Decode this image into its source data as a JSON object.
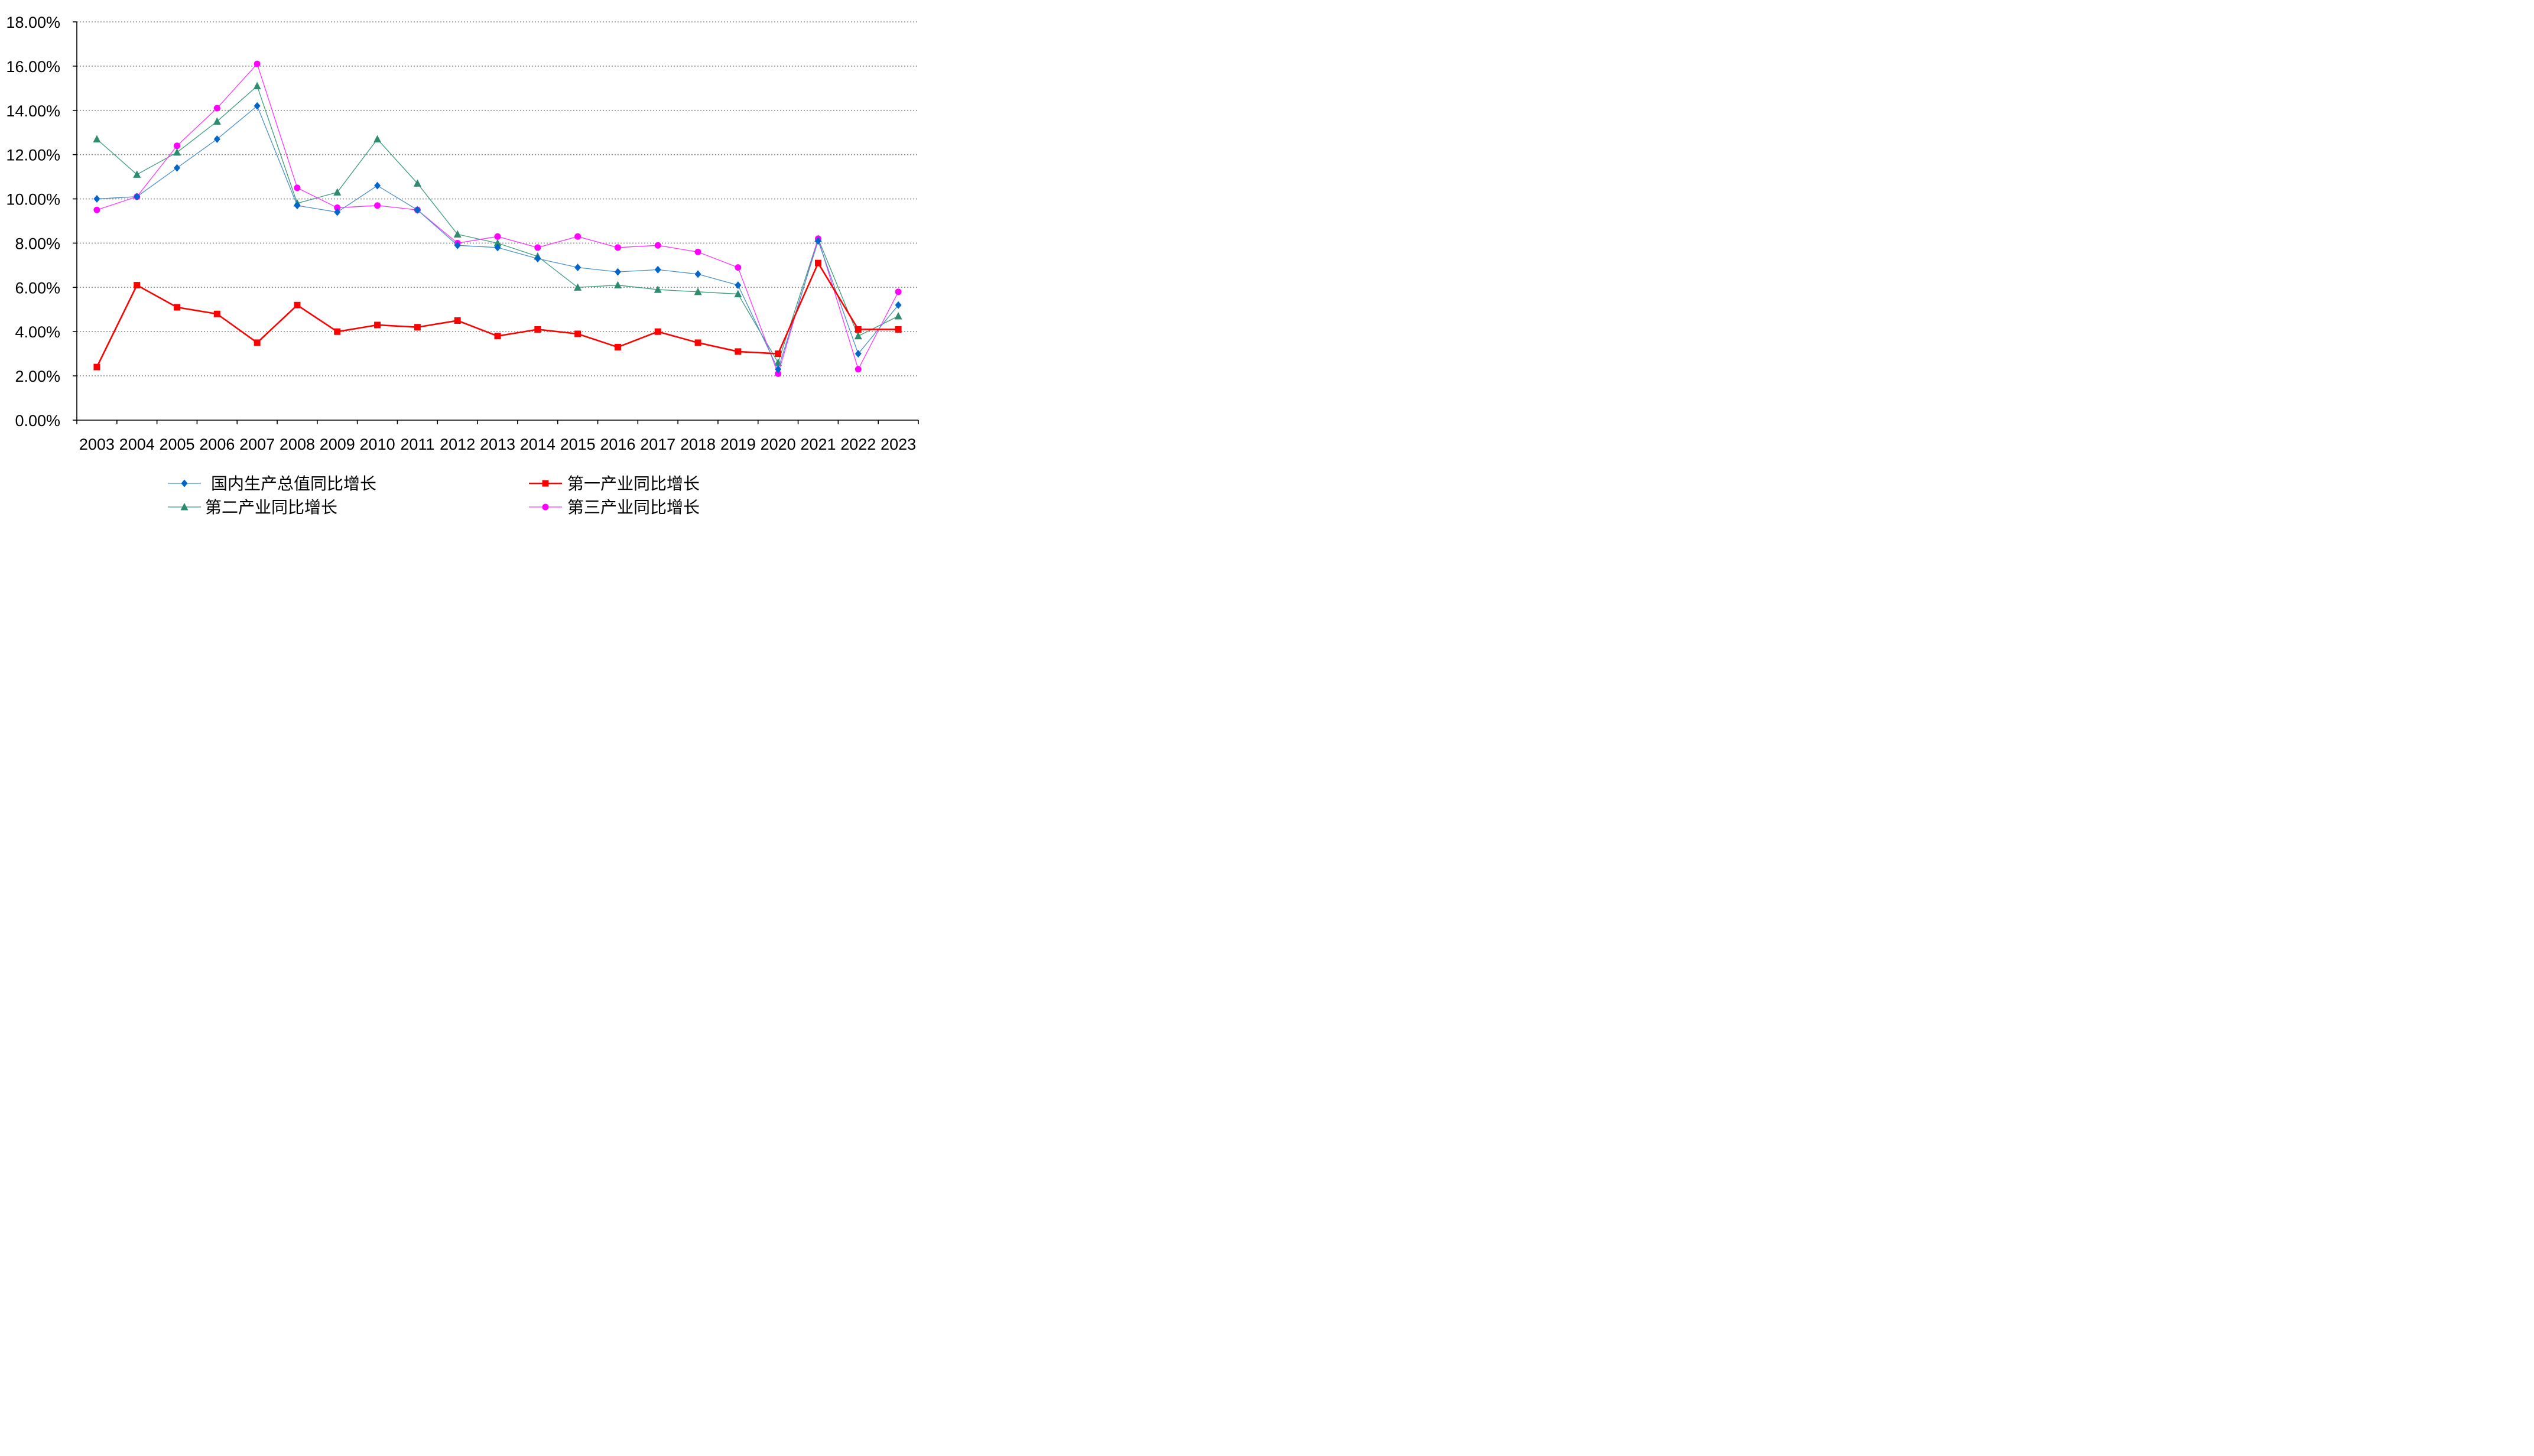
{
  "chart_data": {
    "type": "line",
    "title": "",
    "xlabel": "",
    "ylabel": "",
    "ylim": [
      0,
      18
    ],
    "y_ticks": [
      0,
      2,
      4,
      6,
      8,
      10,
      12,
      14,
      16,
      18
    ],
    "y_tick_labels": [
      "0.00%",
      "2.00%",
      "4.00%",
      "6.00%",
      "8.00%",
      "10.00%",
      "12.00%",
      "14.00%",
      "16.00%",
      "18.00%"
    ],
    "grid": "horizontal dotted",
    "legend_position": "bottom",
    "categories": [
      "2003",
      "2004",
      "2005",
      "2006",
      "2007",
      "2008",
      "2009",
      "2010",
      "2011",
      "2012",
      "2013",
      "2014",
      "2015",
      "2016",
      "2017",
      "2018",
      "2019",
      "2020",
      "2021",
      "2022",
      "2023"
    ],
    "series": [
      {
        "name": "国内生产总值同比增长",
        "color": "#0066cc",
        "line_color": "#4a90c8",
        "marker": "diamond",
        "values": [
          10.0,
          10.1,
          11.4,
          12.7,
          14.2,
          9.7,
          9.4,
          10.6,
          9.5,
          7.9,
          7.8,
          7.3,
          6.9,
          6.7,
          6.8,
          6.6,
          6.1,
          2.3,
          8.1,
          3.0,
          5.2
        ]
      },
      {
        "name": "第一产业同比增长",
        "color": "#ff0000",
        "line_color": "#ff0000",
        "marker": "square",
        "values": [
          2.4,
          6.1,
          5.1,
          4.8,
          3.5,
          5.2,
          4.0,
          4.3,
          4.2,
          4.5,
          3.8,
          4.1,
          3.9,
          3.3,
          4.0,
          3.5,
          3.1,
          3.0,
          7.1,
          4.1,
          4.1
        ]
      },
      {
        "name": "第二产业同比增长",
        "color": "#2e8b6f",
        "line_color": "#3a9a7a",
        "marker": "triangle",
        "values": [
          12.7,
          11.1,
          12.1,
          13.5,
          15.1,
          9.8,
          10.3,
          12.7,
          10.7,
          8.4,
          8.0,
          7.4,
          6.0,
          6.1,
          5.9,
          5.8,
          5.7,
          2.6,
          8.2,
          3.8,
          4.7
        ]
      },
      {
        "name": "第三产业同比增长",
        "color": "#ff00ff",
        "line_color": "#ff33ff",
        "marker": "circle",
        "values": [
          9.5,
          10.1,
          12.4,
          14.1,
          16.1,
          10.5,
          9.6,
          9.7,
          9.5,
          8.0,
          8.3,
          7.8,
          8.3,
          7.8,
          7.9,
          7.6,
          6.9,
          2.1,
          8.2,
          2.3,
          5.8
        ]
      }
    ]
  }
}
